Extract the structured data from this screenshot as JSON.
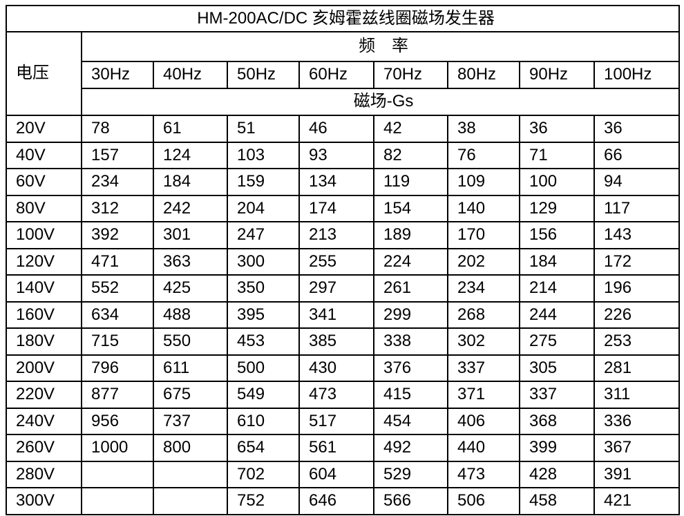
{
  "title": "HM-200AC/DC 亥姆霍兹线圈磁场发生器",
  "table": {
    "voltage_header": "电压",
    "frequency_group_header": "频　率",
    "frequency_headers": [
      "30Hz",
      "40Hz",
      "50Hz",
      "60Hz",
      "70Hz",
      "80Hz",
      "90Hz",
      "100Hz"
    ],
    "unit_header": "磁场-Gs",
    "rows": [
      {
        "voltage": "20V",
        "values": [
          "78",
          "61",
          "51",
          "46",
          "42",
          "38",
          "36",
          "36"
        ]
      },
      {
        "voltage": "40V",
        "values": [
          "157",
          "124",
          "103",
          "93",
          "82",
          "76",
          "71",
          "66"
        ]
      },
      {
        "voltage": "60V",
        "values": [
          "234",
          "184",
          "159",
          "134",
          "119",
          "109",
          "100",
          "94"
        ]
      },
      {
        "voltage": "80V",
        "values": [
          "312",
          "242",
          "204",
          "174",
          "154",
          "140",
          "129",
          "117"
        ]
      },
      {
        "voltage": "100V",
        "values": [
          "392",
          "301",
          "247",
          "213",
          "189",
          "170",
          "156",
          "143"
        ]
      },
      {
        "voltage": "120V",
        "values": [
          "471",
          "363",
          "300",
          "255",
          "224",
          "202",
          "184",
          "172"
        ]
      },
      {
        "voltage": "140V",
        "values": [
          "552",
          "425",
          "350",
          "297",
          "261",
          "234",
          "214",
          "196"
        ]
      },
      {
        "voltage": "160V",
        "values": [
          "634",
          "488",
          "395",
          "341",
          "299",
          "268",
          "244",
          "226"
        ]
      },
      {
        "voltage": "180V",
        "values": [
          "715",
          "550",
          "453",
          "385",
          "338",
          "302",
          "275",
          "253"
        ]
      },
      {
        "voltage": "200V",
        "values": [
          "796",
          "611",
          "500",
          "430",
          "376",
          "337",
          "305",
          "281"
        ]
      },
      {
        "voltage": "220V",
        "values": [
          "877",
          "675",
          "549",
          "473",
          "415",
          "371",
          "337",
          "311"
        ]
      },
      {
        "voltage": "240V",
        "values": [
          "956",
          "737",
          "610",
          "517",
          "454",
          "406",
          "368",
          "336"
        ]
      },
      {
        "voltage": "260V",
        "values": [
          "1000",
          "800",
          "654",
          "561",
          "492",
          "440",
          "399",
          "367"
        ]
      },
      {
        "voltage": "280V",
        "values": [
          "",
          "",
          "702",
          "604",
          "529",
          "473",
          "428",
          "391"
        ]
      },
      {
        "voltage": "300V",
        "values": [
          "",
          "",
          "752",
          "646",
          "566",
          "506",
          "458",
          "421"
        ]
      }
    ]
  },
  "colors": {
    "border": "#000000",
    "text": "#000000",
    "background": "#ffffff"
  },
  "chart_data": {
    "type": "table",
    "title": "HM-200AC/DC 亥姆霍兹线圈磁场发生器",
    "row_header": "电压",
    "column_group_label": "频率",
    "columns": [
      "30Hz",
      "40Hz",
      "50Hz",
      "60Hz",
      "70Hz",
      "80Hz",
      "90Hz",
      "100Hz"
    ],
    "unit": "磁场-Gs",
    "rows": [
      [
        "20V",
        78,
        61,
        51,
        46,
        42,
        38,
        36,
        36
      ],
      [
        "40V",
        157,
        124,
        103,
        93,
        82,
        76,
        71,
        66
      ],
      [
        "60V",
        234,
        184,
        159,
        134,
        119,
        109,
        100,
        94
      ],
      [
        "80V",
        312,
        242,
        204,
        174,
        154,
        140,
        129,
        117
      ],
      [
        "100V",
        392,
        301,
        247,
        213,
        189,
        170,
        156,
        143
      ],
      [
        "120V",
        471,
        363,
        300,
        255,
        224,
        202,
        184,
        172
      ],
      [
        "140V",
        552,
        425,
        350,
        297,
        261,
        234,
        214,
        196
      ],
      [
        "160V",
        634,
        488,
        395,
        341,
        299,
        268,
        244,
        226
      ],
      [
        "180V",
        715,
        550,
        453,
        385,
        338,
        302,
        275,
        253
      ],
      [
        "200V",
        796,
        611,
        500,
        430,
        376,
        337,
        305,
        281
      ],
      [
        "220V",
        877,
        675,
        549,
        473,
        415,
        371,
        337,
        311
      ],
      [
        "240V",
        956,
        737,
        610,
        517,
        454,
        406,
        368,
        336
      ],
      [
        "260V",
        1000,
        800,
        654,
        561,
        492,
        440,
        399,
        367
      ],
      [
        "280V",
        null,
        null,
        702,
        604,
        529,
        473,
        428,
        391
      ],
      [
        "300V",
        null,
        null,
        752,
        646,
        566,
        506,
        458,
        421
      ]
    ]
  }
}
